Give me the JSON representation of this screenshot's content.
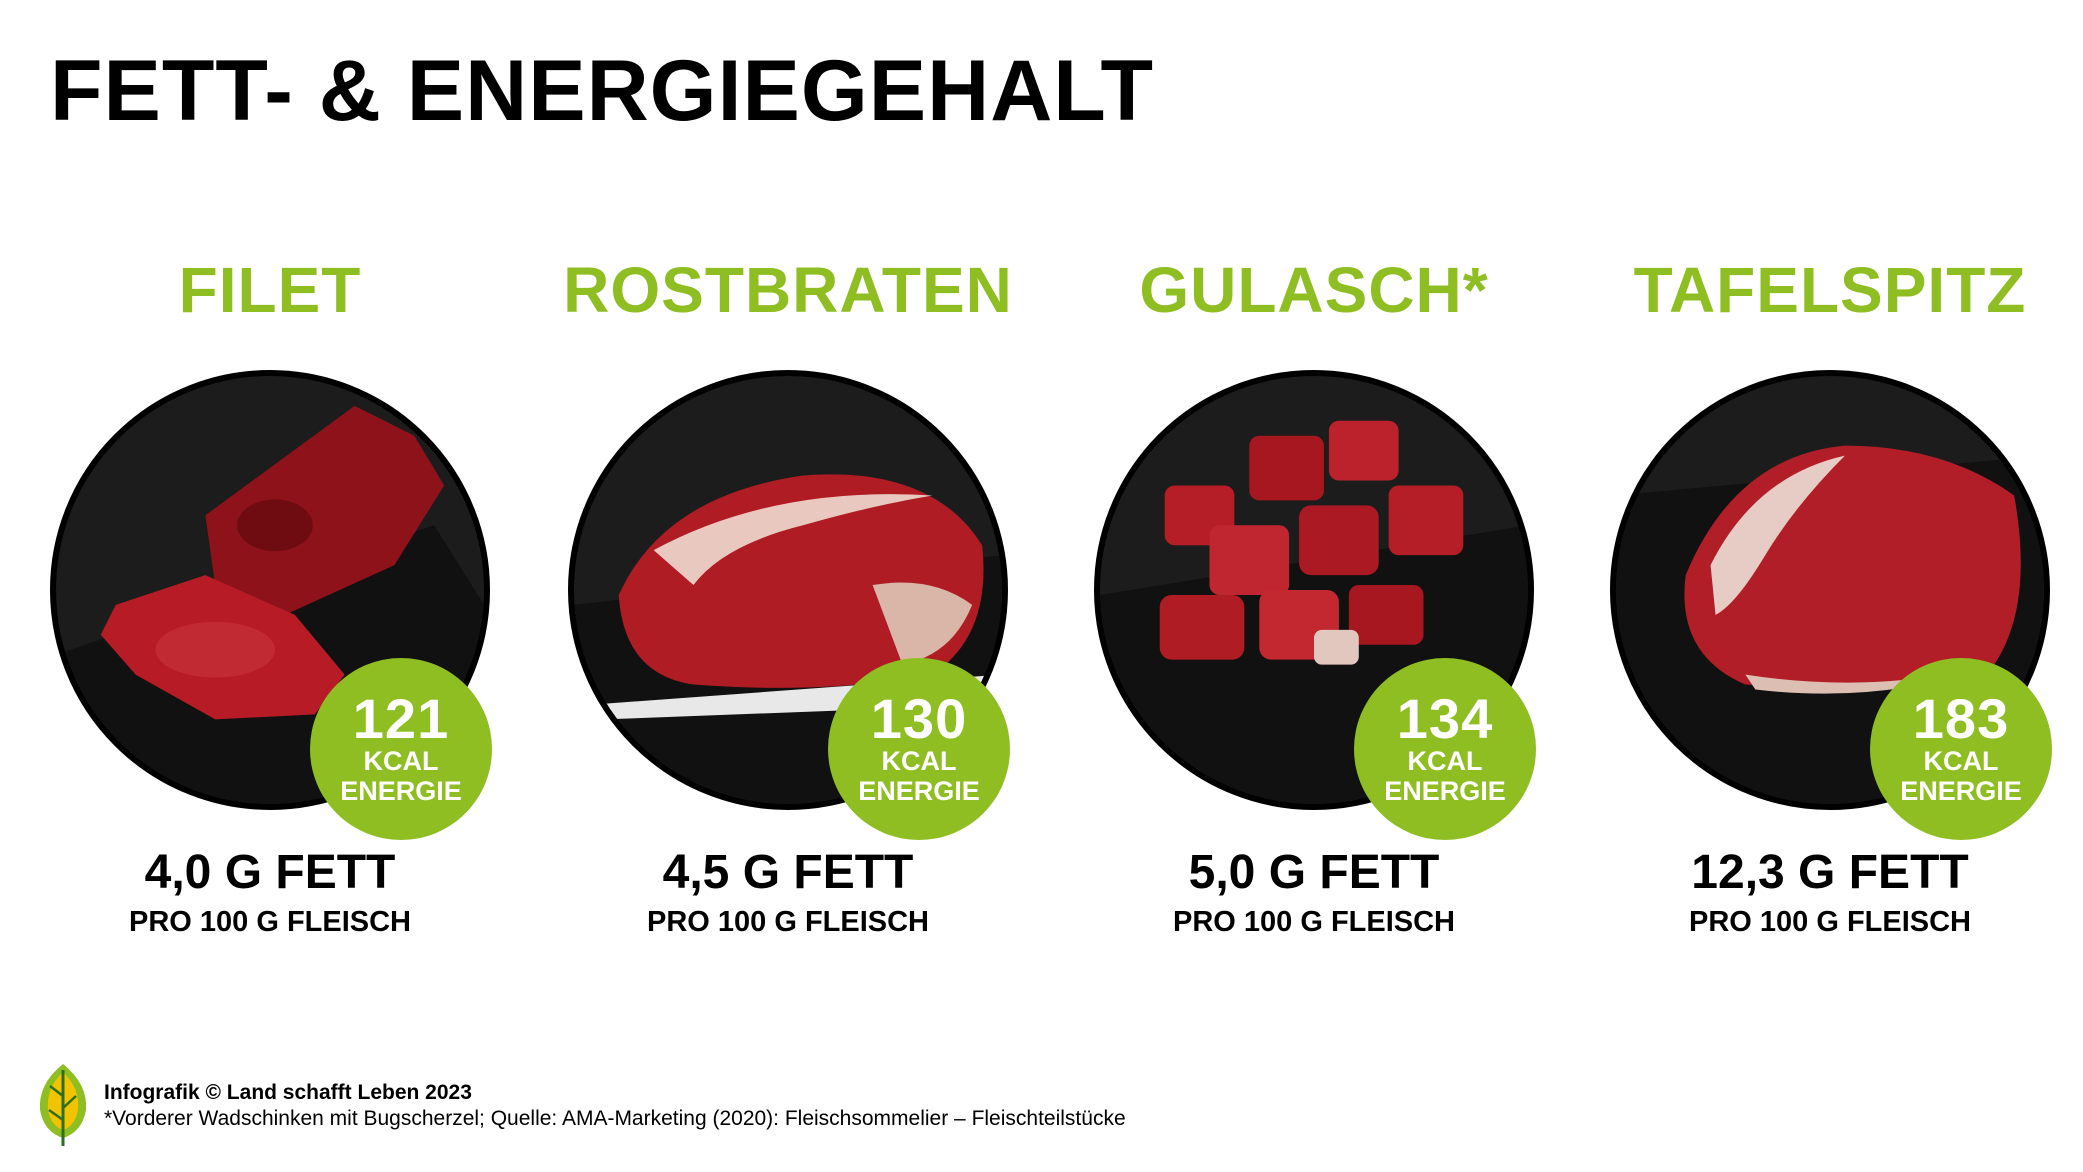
{
  "title": "FETT- & ENERGIEGEHALT",
  "colors": {
    "accent": "#8fbe23",
    "text": "#000000",
    "plate_bg": "#1c1c1c",
    "meat": "#a5171f"
  },
  "cards": [
    {
      "name": "FILET",
      "kcal": "121",
      "kcal_unit": "KCAL",
      "kcal_label": "ENERGIE",
      "fat": "4,0 G FETT",
      "per": "PRO 100 G FLEISCH",
      "image": "filet-meat-image"
    },
    {
      "name": "ROSTBRATEN",
      "kcal": "130",
      "kcal_unit": "KCAL",
      "kcal_label": "ENERGIE",
      "fat": "4,5 G FETT",
      "per": "PRO 100 G FLEISCH",
      "image": "rostbraten-meat-image"
    },
    {
      "name": "GULASCH*",
      "kcal": "134",
      "kcal_unit": "KCAL",
      "kcal_label": "ENERGIE",
      "fat": "5,0 G FETT",
      "per": "PRO 100 G FLEISCH",
      "image": "gulasch-meat-image"
    },
    {
      "name": "TAFELSPITZ",
      "kcal": "183",
      "kcal_unit": "KCAL",
      "kcal_label": "ENERGIE",
      "fat": "12,3 G FETT",
      "per": "PRO 100 G FLEISCH",
      "image": "tafelspitz-meat-image"
    }
  ],
  "footer": {
    "credit": "Infografik © Land schafft Leben 2023",
    "footnote": "*Vorderer Wadschinken mit Bugscherzel; Quelle: AMA-Marketing (2020): Fleischsommelier – Fleischteilstücke",
    "logo": "leaf-logo-icon"
  }
}
